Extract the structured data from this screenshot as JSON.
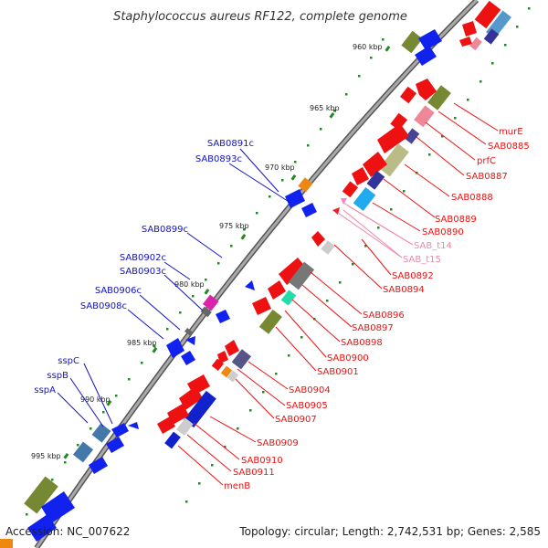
{
  "title": "Staphylococcus aureus RF122, complete genome",
  "footer": {
    "accession": "Accession: NC_007622",
    "summary": "Topology: circular; Length: 2,742,531 bp; Genes: 2,585"
  },
  "colors": {
    "backbone": "#888888",
    "forward_label": "#ee1111",
    "reverse_label": "#1111cc",
    "trna_label": "#ee88aa",
    "tick": "#228822"
  },
  "kbp_marks": [
    "960 kbp",
    "965 kbp",
    "970 kbp",
    "975 kbp",
    "980 kbp",
    "985 kbp",
    "990 kbp",
    "995 kbp"
  ],
  "left_labels": [
    "SAB0891c",
    "SAB0893c",
    "SAB0899c",
    "SAB0902c",
    "SAB0903c",
    "SAB0906c",
    "SAB0908c",
    "sspC",
    "sspB",
    "sspA"
  ],
  "right_labels": [
    "murE",
    "SAB0885",
    "prfC",
    "SAB0887",
    "SAB0888",
    "SAB0889",
    "SAB0890",
    "SAB_t14",
    "SAB_t15",
    "SAB0892",
    "SAB0894",
    "SAB0896",
    "SAB0897",
    "SAB0898",
    "SAB0900",
    "SAB0901",
    "SAB0904",
    "SAB0905",
    "SAB0907",
    "SAB0909",
    "SAB0910",
    "SAB0911",
    "menB"
  ]
}
